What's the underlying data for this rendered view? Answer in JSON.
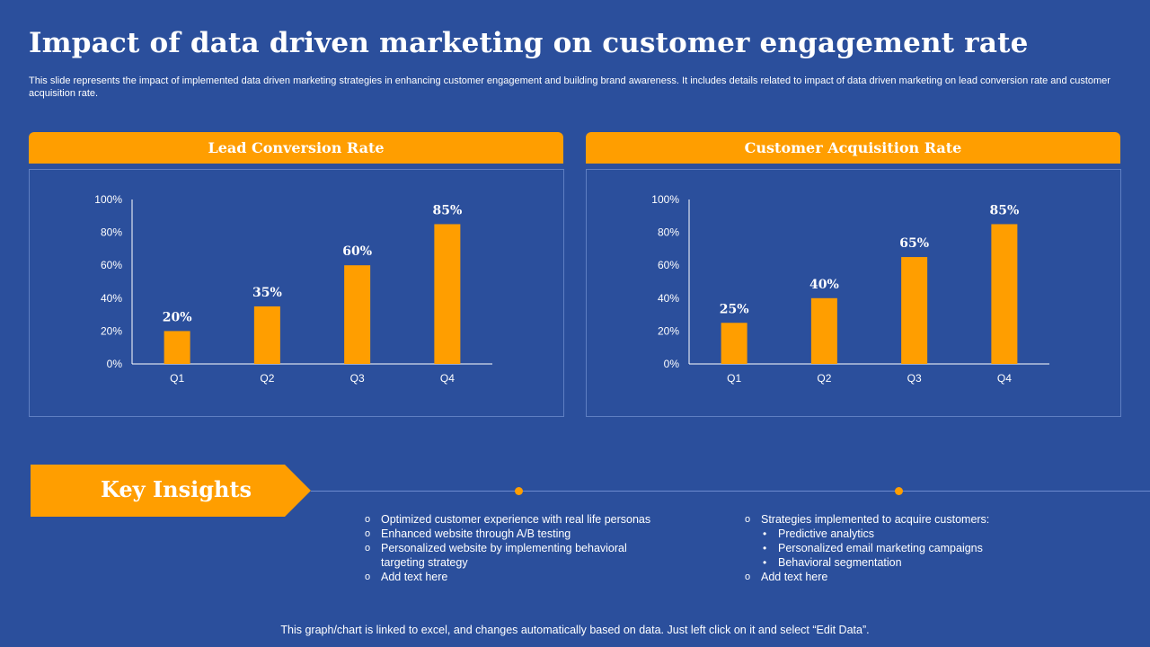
{
  "title": "Impact of data driven marketing on customer engagement rate",
  "subtitle": "This slide represents the impact of implemented data driven marketing strategies in enhancing customer engagement and building brand awareness. It includes details related to impact of data driven marketing on lead conversion rate and customer acquisition rate.",
  "colors": {
    "background": "#2b4f9c",
    "accent": "#ff9e00",
    "text": "#ffffff"
  },
  "chart_data": [
    {
      "type": "bar",
      "title": "Lead Conversion Rate",
      "categories": [
        "Q1",
        "Q2",
        "Q3",
        "Q4"
      ],
      "values": [
        20,
        35,
        60,
        85
      ],
      "data_labels": [
        "20%",
        "35%",
        "60%",
        "85%"
      ],
      "ylim": [
        0,
        100
      ],
      "yticks": [
        "0%",
        "20%",
        "40%",
        "60%",
        "80%",
        "100%"
      ],
      "grid": false,
      "color": "#ff9e00"
    },
    {
      "type": "bar",
      "title": "Customer Acquisition Rate",
      "categories": [
        "Q1",
        "Q2",
        "Q3",
        "Q4"
      ],
      "values": [
        25,
        40,
        65,
        85
      ],
      "data_labels": [
        "25%",
        "40%",
        "65%",
        "85%"
      ],
      "ylim": [
        0,
        100
      ],
      "yticks": [
        "0%",
        "20%",
        "40%",
        "60%",
        "80%",
        "100%"
      ],
      "grid": false,
      "color": "#ff9e00"
    }
  ],
  "insights": {
    "label": "Key Insights",
    "left": [
      "Optimized customer experience with real life personas",
      "Enhanced website through A/B testing",
      "Personalized website by implementing behavioral targeting strategy",
      "Add text here"
    ],
    "right": {
      "heading": "Strategies implemented to acquire customers:",
      "sub": [
        "Predictive analytics",
        "Personalized email marketing campaigns",
        "Behavioral segmentation"
      ],
      "last": "Add text here"
    }
  },
  "footer": "This graph/chart is linked to excel, and changes automatically based on data. Just left click on it and select “Edit Data”."
}
